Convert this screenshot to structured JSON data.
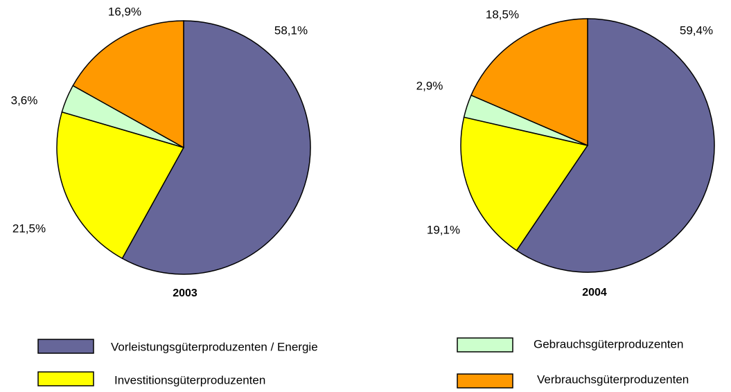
{
  "chart_data": [
    {
      "type": "pie",
      "title": "2003",
      "categories": [
        "Vorleistungsgüterproduzenten / Energie",
        "Investitionsgüterproduzenten",
        "Gebrauchsgüterproduzenten",
        "Verbrauchsgüterproduzenten"
      ],
      "values": [
        58.1,
        21.5,
        3.6,
        16.9
      ],
      "value_labels": [
        "58,1%",
        "21,5%",
        "3,6%",
        "16,9%"
      ],
      "colors": [
        "#666699",
        "#ffff00",
        "#ccffcc",
        "#ff9900"
      ]
    },
    {
      "type": "pie",
      "title": "2004",
      "categories": [
        "Vorleistungsgüterproduzenten / Energie",
        "Investitionsgüterproduzenten",
        "Gebrauchsgüterproduzenten",
        "Verbrauchsgüterproduzenten"
      ],
      "values": [
        59.4,
        19.1,
        2.9,
        18.5
      ],
      "value_labels": [
        "59,4%",
        "19,1%",
        "2,9%",
        "18,5%"
      ],
      "colors": [
        "#666699",
        "#ffff00",
        "#ccffcc",
        "#ff9900"
      ]
    }
  ]
}
